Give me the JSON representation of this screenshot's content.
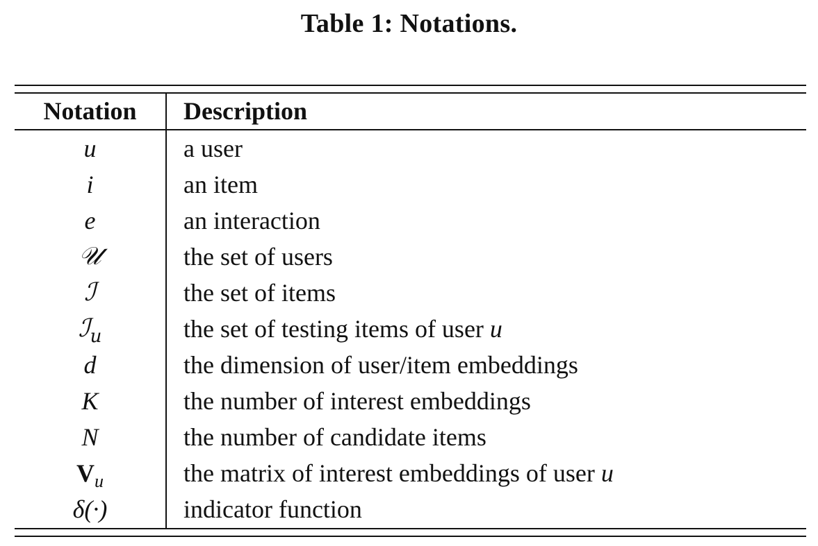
{
  "caption": "Table 1: Notations.",
  "header": {
    "notation": "Notation",
    "description": "Description"
  },
  "rows": [
    {
      "symbol": "u",
      "sub": "",
      "style": "italic",
      "description": "a user",
      "desc_var": ""
    },
    {
      "symbol": "i",
      "sub": "",
      "style": "italic",
      "description": "an item",
      "desc_var": ""
    },
    {
      "symbol": "e",
      "sub": "",
      "style": "italic",
      "description": "an interaction",
      "desc_var": ""
    },
    {
      "symbol": "𝒰",
      "sub": "",
      "style": "script",
      "description": "the set of users",
      "desc_var": ""
    },
    {
      "symbol": "ℐ",
      "sub": "",
      "style": "script",
      "description": "the set of items",
      "desc_var": ""
    },
    {
      "symbol": "ℐ",
      "sub": "u",
      "style": "script",
      "description": "the set of testing items of user ",
      "desc_var": "u"
    },
    {
      "symbol": "d",
      "sub": "",
      "style": "italic",
      "description": "the dimension of user/item embeddings",
      "desc_var": ""
    },
    {
      "symbol": "K",
      "sub": "",
      "style": "italic",
      "description": "the number of interest embeddings",
      "desc_var": ""
    },
    {
      "symbol": "N",
      "sub": "",
      "style": "italic",
      "description": "the number of candidate items",
      "desc_var": ""
    },
    {
      "symbol": "V",
      "sub": "u",
      "style": "bold",
      "description": "the matrix of interest embeddings of user ",
      "desc_var": "u"
    },
    {
      "symbol": "δ(·)",
      "sub": "",
      "style": "italic",
      "description": "indicator function",
      "desc_var": ""
    }
  ]
}
